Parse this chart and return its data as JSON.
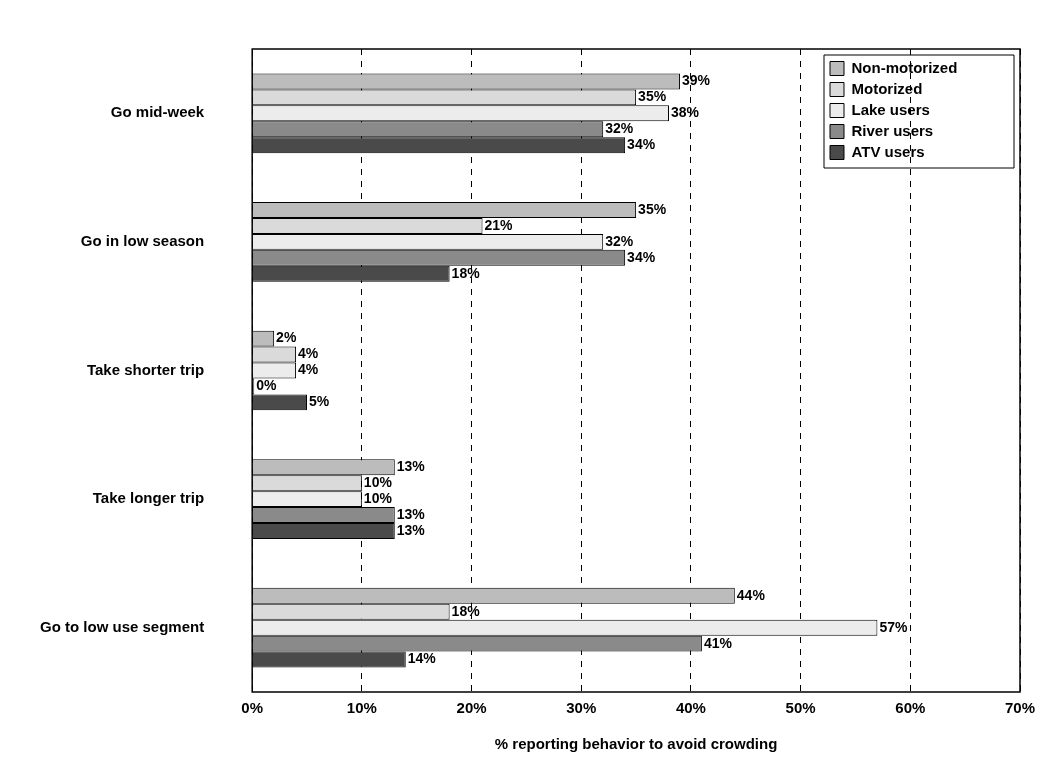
{
  "chart_data": {
    "type": "bar",
    "orientation": "horizontal",
    "xlabel": "% reporting behavior to avoid crowding",
    "categories": [
      "Go mid-week",
      "Go in low season",
      "Take shorter trip",
      "Take longer trip",
      "Go to low use segment"
    ],
    "series": [
      {
        "name": "Non-motorized",
        "color": "#bcbcbc",
        "values": [
          39,
          35,
          2,
          13,
          44
        ],
        "value_labels": [
          "39%",
          "35%",
          "2%",
          "13%",
          "44%"
        ]
      },
      {
        "name": "Motorized",
        "color": "#dadada",
        "values": [
          35,
          21,
          4,
          10,
          18
        ],
        "value_labels": [
          "35%",
          "21%",
          "4%",
          "10%",
          "18%"
        ]
      },
      {
        "name": "Lake users",
        "color": "#ececec",
        "values": [
          38,
          32,
          4,
          10,
          57
        ],
        "value_labels": [
          "38%",
          "32%",
          "4%",
          "10%",
          "57%"
        ]
      },
      {
        "name": "River users",
        "color": "#8a8a8a",
        "values": [
          32,
          34,
          0,
          13,
          41
        ],
        "value_labels": [
          "32%",
          "34%",
          "0%",
          "13%",
          "41%"
        ]
      },
      {
        "name": "ATV users",
        "color": "#4a4a4a",
        "values": [
          34,
          18,
          5,
          13,
          14
        ],
        "value_labels": [
          "34%",
          "18%",
          "5%",
          "13%",
          "14%"
        ]
      }
    ],
    "xlim": [
      0,
      70
    ],
    "xticks": [
      {
        "value": 0,
        "label": "0%"
      },
      {
        "value": 10,
        "label": "10%"
      },
      {
        "value": 20,
        "label": "20%"
      },
      {
        "value": 30,
        "label": "30%"
      },
      {
        "value": 40,
        "label": "40%"
      },
      {
        "value": 50,
        "label": "50%"
      },
      {
        "value": 60,
        "label": "60%"
      },
      {
        "value": 70,
        "label": "70%"
      }
    ],
    "grid": "x",
    "line_style": "dashed",
    "legend": "top right"
  }
}
